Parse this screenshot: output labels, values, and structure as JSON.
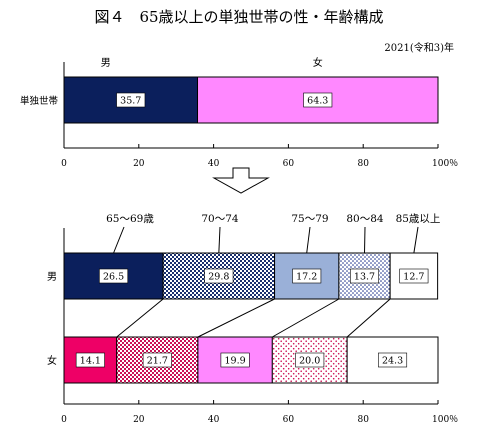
{
  "title": "図４　65歳以上の単独世帯の性・年齢構成",
  "note": "2021(令和3)年",
  "colors": {
    "male_top": "#0b1f5c",
    "female_top": "#ff88ff",
    "m_65_69": "#0b1f5c",
    "m_70_74": "#1a2f6e",
    "m_75_79": "#9ab0d8",
    "f_65_69": "#ee0066",
    "f_70_74": "#cc1155",
    "f_75_79": "#ff88ff",
    "dot_blue": "#1a2f8a",
    "dot_red": "#cc1155"
  },
  "chart_data": [
    {
      "type": "bar",
      "orientation": "horizontal",
      "stacked": true,
      "categories": [
        "単独世帯"
      ],
      "series": [
        {
          "name": "男",
          "values": [
            35.7
          ]
        },
        {
          "name": "女",
          "values": [
            64.3
          ]
        }
      ],
      "xlim": [
        0,
        100
      ],
      "x_ticks": [
        "0",
        "20",
        "40",
        "60",
        "80",
        "100％"
      ],
      "legend_placement": "top"
    },
    {
      "type": "bar",
      "orientation": "horizontal",
      "stacked": true,
      "categories": [
        "男",
        "女"
      ],
      "series": [
        {
          "name": "65～69歳",
          "values": [
            26.5,
            14.1
          ]
        },
        {
          "name": "70～74",
          "values": [
            29.8,
            21.7
          ]
        },
        {
          "name": "75～79",
          "values": [
            17.2,
            19.9
          ]
        },
        {
          "name": "80～84",
          "values": [
            13.7,
            20.0
          ]
        },
        {
          "name": "85歳以上",
          "values": [
            12.7,
            24.3
          ]
        }
      ],
      "xlim": [
        0,
        100
      ],
      "x_ticks": [
        "0",
        "20",
        "40",
        "60",
        "80",
        "100％"
      ],
      "legend_placement": "top"
    }
  ]
}
